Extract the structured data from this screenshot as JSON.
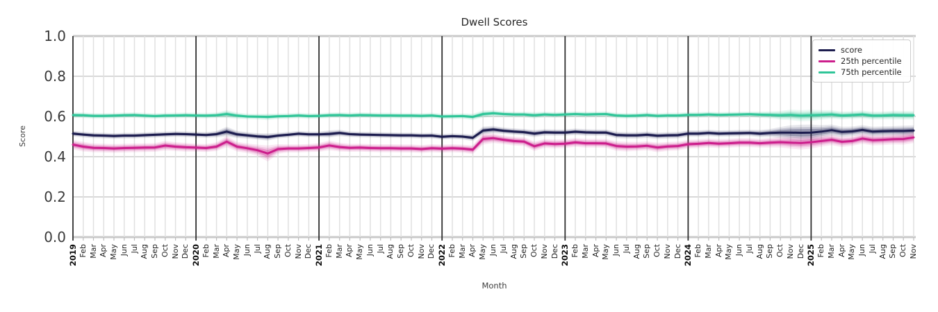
{
  "chart_data": {
    "type": "line",
    "title": "Dwell Scores",
    "xlabel": "Month",
    "ylabel": "Score",
    "ylim": [
      0.0,
      1.0
    ],
    "yticks": [
      "0.0",
      "0.2",
      "0.4",
      "0.6",
      "0.8",
      "1.0"
    ],
    "grid": true,
    "legend_position": "upper right",
    "x_tick_labels": [
      "2019",
      "Feb",
      "Mar",
      "Apr",
      "May",
      "Jun",
      "Jul",
      "Aug",
      "Sep",
      "Oct",
      "Nov",
      "Dec",
      "2020",
      "Feb",
      "Mar",
      "Apr",
      "May",
      "Jun",
      "Jul",
      "Aug",
      "Sep",
      "Oct",
      "Nov",
      "Dec",
      "2021",
      "Feb",
      "Mar",
      "Apr",
      "May",
      "Jun",
      "Jul",
      "Aug",
      "Sep",
      "Oct",
      "Nov",
      "Dec",
      "2022",
      "Feb",
      "Mar",
      "Apr",
      "May",
      "Jun",
      "Jul",
      "Aug",
      "Sep",
      "Oct",
      "Nov",
      "Dec",
      "2023",
      "Feb",
      "Mar",
      "Apr",
      "May",
      "Jun",
      "Jul",
      "Aug",
      "Sep",
      "Oct",
      "Nov",
      "Dec",
      "2024",
      "Feb",
      "Mar",
      "Apr",
      "May",
      "Jun",
      "Jul",
      "Aug",
      "Sep",
      "Oct",
      "Nov",
      "Dec",
      "2025",
      "Feb",
      "Mar",
      "Apr",
      "May",
      "Jun",
      "Jul",
      "Aug",
      "Sep",
      "Oct",
      "Nov"
    ],
    "series": [
      {
        "name": "score",
        "color": "#1c1c4e",
        "values": [
          0.515,
          0.51,
          0.506,
          0.505,
          0.503,
          0.505,
          0.505,
          0.507,
          0.509,
          0.511,
          0.513,
          0.512,
          0.51,
          0.508,
          0.512,
          0.525,
          0.511,
          0.506,
          0.501,
          0.498,
          0.505,
          0.509,
          0.514,
          0.511,
          0.511,
          0.513,
          0.518,
          0.512,
          0.51,
          0.509,
          0.508,
          0.507,
          0.506,
          0.506,
          0.504,
          0.505,
          0.499,
          0.502,
          0.5,
          0.494,
          0.53,
          0.535,
          0.529,
          0.525,
          0.522,
          0.515,
          0.521,
          0.52,
          0.52,
          0.524,
          0.521,
          0.52,
          0.52,
          0.508,
          0.506,
          0.506,
          0.509,
          0.504,
          0.506,
          0.507,
          0.515,
          0.515,
          0.518,
          0.515,
          0.516,
          0.517,
          0.518,
          0.515,
          0.518,
          0.52,
          0.52,
          0.519,
          0.52,
          0.525,
          0.532,
          0.523,
          0.526,
          0.533,
          0.525,
          0.527,
          0.528,
          0.528,
          0.53
        ],
        "band_halfwidth": [
          0.007,
          0.007,
          0.007,
          0.007,
          0.007,
          0.007,
          0.007,
          0.007,
          0.007,
          0.007,
          0.007,
          0.007,
          0.007,
          0.007,
          0.008,
          0.012,
          0.009,
          0.008,
          0.008,
          0.009,
          0.007,
          0.007,
          0.007,
          0.007,
          0.007,
          0.009,
          0.008,
          0.007,
          0.007,
          0.007,
          0.007,
          0.007,
          0.007,
          0.007,
          0.007,
          0.007,
          0.007,
          0.007,
          0.007,
          0.008,
          0.01,
          0.009,
          0.008,
          0.008,
          0.008,
          0.009,
          0.008,
          0.008,
          0.008,
          0.008,
          0.008,
          0.008,
          0.008,
          0.008,
          0.008,
          0.008,
          0.008,
          0.008,
          0.008,
          0.008,
          0.008,
          0.008,
          0.008,
          0.008,
          0.008,
          0.008,
          0.008,
          0.009,
          0.01,
          0.014,
          0.018,
          0.02,
          0.02,
          0.016,
          0.014,
          0.013,
          0.012,
          0.012,
          0.012,
          0.012,
          0.012,
          0.013,
          0.013
        ]
      },
      {
        "name": "25th percentile",
        "color": "#cc1e8c",
        "values": [
          0.46,
          0.45,
          0.444,
          0.443,
          0.441,
          0.443,
          0.444,
          0.445,
          0.446,
          0.455,
          0.45,
          0.447,
          0.445,
          0.443,
          0.45,
          0.475,
          0.45,
          0.442,
          0.432,
          0.416,
          0.438,
          0.441,
          0.441,
          0.443,
          0.446,
          0.456,
          0.448,
          0.444,
          0.445,
          0.443,
          0.442,
          0.442,
          0.441,
          0.441,
          0.438,
          0.442,
          0.44,
          0.442,
          0.44,
          0.435,
          0.488,
          0.492,
          0.484,
          0.478,
          0.475,
          0.452,
          0.466,
          0.463,
          0.465,
          0.471,
          0.467,
          0.467,
          0.466,
          0.453,
          0.45,
          0.451,
          0.454,
          0.446,
          0.451,
          0.453,
          0.462,
          0.464,
          0.468,
          0.465,
          0.467,
          0.47,
          0.47,
          0.467,
          0.47,
          0.472,
          0.47,
          0.468,
          0.472,
          0.478,
          0.484,
          0.474,
          0.478,
          0.49,
          0.482,
          0.484,
          0.487,
          0.488,
          0.496
        ],
        "band_halfwidth": [
          0.012,
          0.012,
          0.011,
          0.011,
          0.011,
          0.011,
          0.011,
          0.011,
          0.011,
          0.012,
          0.011,
          0.011,
          0.01,
          0.01,
          0.011,
          0.014,
          0.012,
          0.012,
          0.014,
          0.02,
          0.012,
          0.01,
          0.01,
          0.01,
          0.011,
          0.012,
          0.011,
          0.01,
          0.01,
          0.01,
          0.01,
          0.01,
          0.01,
          0.01,
          0.01,
          0.01,
          0.01,
          0.01,
          0.01,
          0.011,
          0.014,
          0.012,
          0.011,
          0.011,
          0.011,
          0.012,
          0.011,
          0.011,
          0.011,
          0.011,
          0.011,
          0.011,
          0.011,
          0.012,
          0.012,
          0.011,
          0.011,
          0.012,
          0.011,
          0.011,
          0.011,
          0.011,
          0.011,
          0.011,
          0.011,
          0.011,
          0.011,
          0.011,
          0.012,
          0.013,
          0.015,
          0.016,
          0.016,
          0.014,
          0.013,
          0.013,
          0.012,
          0.013,
          0.013,
          0.013,
          0.013,
          0.014,
          0.014
        ]
      },
      {
        "name": "75th percentile",
        "color": "#2fc598",
        "values": [
          0.607,
          0.606,
          0.603,
          0.603,
          0.604,
          0.606,
          0.607,
          0.604,
          0.602,
          0.604,
          0.605,
          0.606,
          0.605,
          0.604,
          0.606,
          0.612,
          0.604,
          0.6,
          0.599,
          0.598,
          0.601,
          0.602,
          0.605,
          0.602,
          0.603,
          0.606,
          0.607,
          0.605,
          0.607,
          0.606,
          0.605,
          0.605,
          0.604,
          0.604,
          0.603,
          0.605,
          0.6,
          0.601,
          0.602,
          0.598,
          0.612,
          0.616,
          0.612,
          0.61,
          0.61,
          0.606,
          0.61,
          0.608,
          0.61,
          0.612,
          0.61,
          0.611,
          0.612,
          0.605,
          0.603,
          0.604,
          0.607,
          0.603,
          0.605,
          0.605,
          0.608,
          0.608,
          0.61,
          0.608,
          0.609,
          0.61,
          0.611,
          0.609,
          0.608,
          0.606,
          0.608,
          0.604,
          0.606,
          0.608,
          0.61,
          0.605,
          0.607,
          0.61,
          0.604,
          0.605,
          0.607,
          0.606,
          0.606
        ],
        "band_halfwidth": [
          0.007,
          0.007,
          0.007,
          0.007,
          0.007,
          0.007,
          0.007,
          0.007,
          0.007,
          0.007,
          0.007,
          0.007,
          0.007,
          0.007,
          0.007,
          0.01,
          0.008,
          0.007,
          0.007,
          0.008,
          0.007,
          0.007,
          0.007,
          0.007,
          0.007,
          0.007,
          0.007,
          0.007,
          0.007,
          0.007,
          0.007,
          0.007,
          0.007,
          0.007,
          0.007,
          0.007,
          0.007,
          0.007,
          0.007,
          0.008,
          0.009,
          0.008,
          0.007,
          0.007,
          0.007,
          0.008,
          0.007,
          0.007,
          0.007,
          0.007,
          0.007,
          0.007,
          0.007,
          0.007,
          0.007,
          0.007,
          0.007,
          0.007,
          0.007,
          0.007,
          0.007,
          0.007,
          0.007,
          0.007,
          0.007,
          0.007,
          0.007,
          0.008,
          0.009,
          0.011,
          0.013,
          0.014,
          0.014,
          0.012,
          0.011,
          0.01,
          0.01,
          0.01,
          0.01,
          0.01,
          0.011,
          0.011,
          0.011
        ]
      }
    ],
    "style": {
      "grid_month_color": "#e0e0e0",
      "grid_year_color": "#2e2e2e",
      "grid_h_color": "#cccccc",
      "axis_edge_color": "#c9c9c9"
    }
  }
}
